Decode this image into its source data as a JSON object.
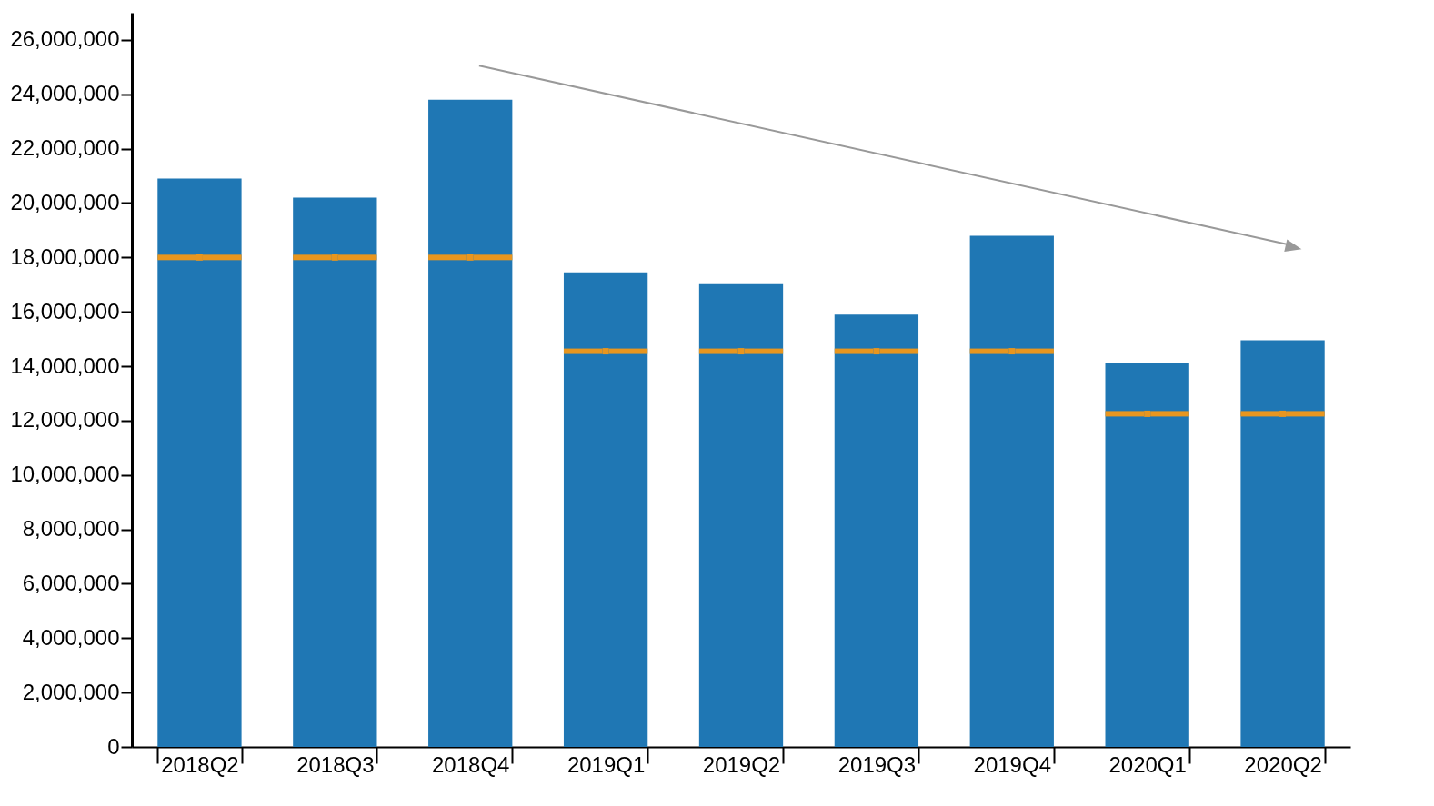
{
  "chart_data": {
    "type": "bar",
    "categories": [
      "2018Q2",
      "2018Q3",
      "2018Q4",
      "2019Q1",
      "2019Q2",
      "2019Q3",
      "2019Q4",
      "2020Q1",
      "2020Q2"
    ],
    "series": [
      {
        "type": "bar",
        "color": "#1f77b4",
        "values": [
          20900000,
          20200000,
          23800000,
          17450000,
          17050000,
          15900000,
          18800000,
          14100000,
          14950000
        ]
      },
      {
        "type": "scatter",
        "color": "#e8961f",
        "marker": "square",
        "values": [
          18000000,
          18000000,
          18000000,
          14550000,
          14550000,
          14550000,
          14550000,
          12250000,
          12250000
        ]
      }
    ],
    "ylim": [
      0,
      27000000
    ],
    "yticks": [
      0,
      {
        "value": 2000000,
        "label": "2,000,000"
      },
      {
        "value": 4000000,
        "label": "4,000,000"
      },
      {
        "value": 6000000,
        "label": "6,000,000"
      },
      {
        "value": 8000000,
        "label": "8,000,000"
      },
      {
        "value": 10000000,
        "label": "10,000,000"
      },
      {
        "value": 12000000,
        "label": "12,000,000"
      },
      {
        "value": 14000000,
        "label": "14,000,000"
      },
      {
        "value": 16000000,
        "label": "16,000,000"
      },
      {
        "value": 18000000,
        "label": "18,000,000"
      },
      {
        "value": 20000000,
        "label": "20,000,000"
      },
      {
        "value": 22000000,
        "label": "22,000,000"
      },
      {
        "value": 24000000,
        "label": "24,000,000"
      },
      {
        "value": 26000000,
        "label": "26,000,000"
      }
    ],
    "grid": false
  }
}
